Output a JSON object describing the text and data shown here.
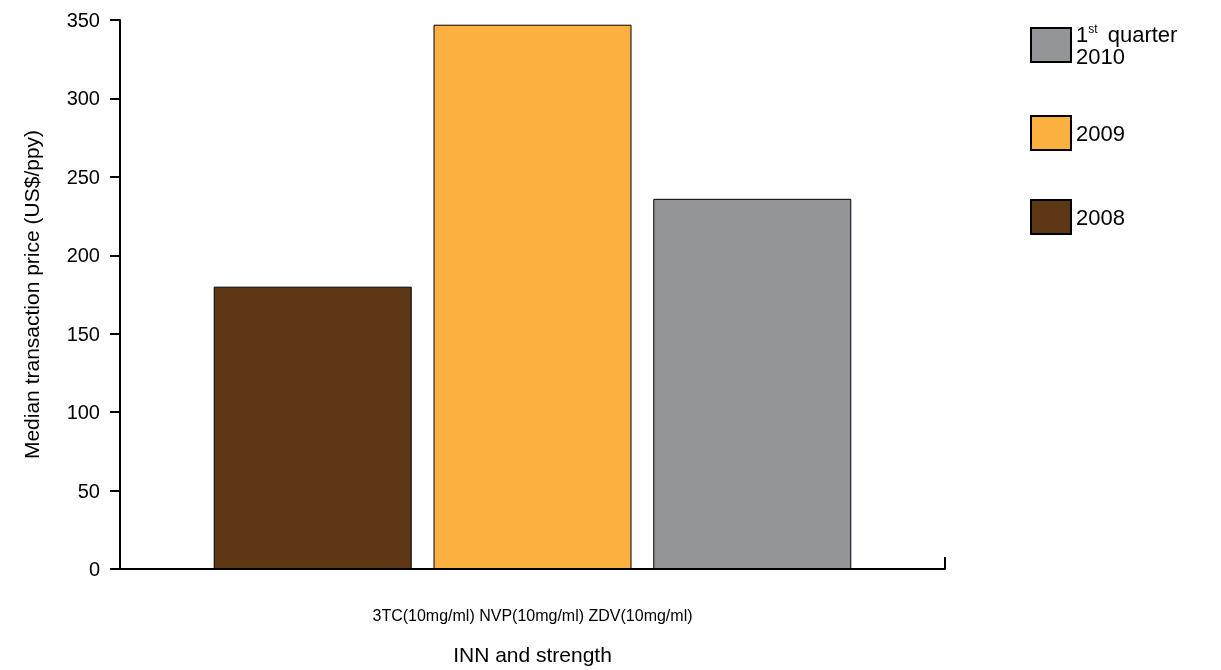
{
  "chart_data": {
    "type": "bar",
    "xlabel": "INN and strength",
    "ylabel": "Median transaction price (US$/ppy)",
    "categories": [
      "3TC(10mg/ml) NVP(10mg/ml) ZDV(10mg/ml)"
    ],
    "series": [
      {
        "name": "2008",
        "color": "#5e3714",
        "values": [
          180
        ]
      },
      {
        "name": "2009",
        "color": "#fbb040",
        "values": [
          347
        ]
      },
      {
        "name": "1$^{st}$ quarter 2010",
        "color": "#939598",
        "values": [
          236
        ]
      }
    ],
    "ylim": [
      0,
      350
    ],
    "yticks": [
      0,
      50,
      100,
      150,
      200,
      250,
      300,
      350
    ],
    "grid": false,
    "legend": "top right"
  }
}
